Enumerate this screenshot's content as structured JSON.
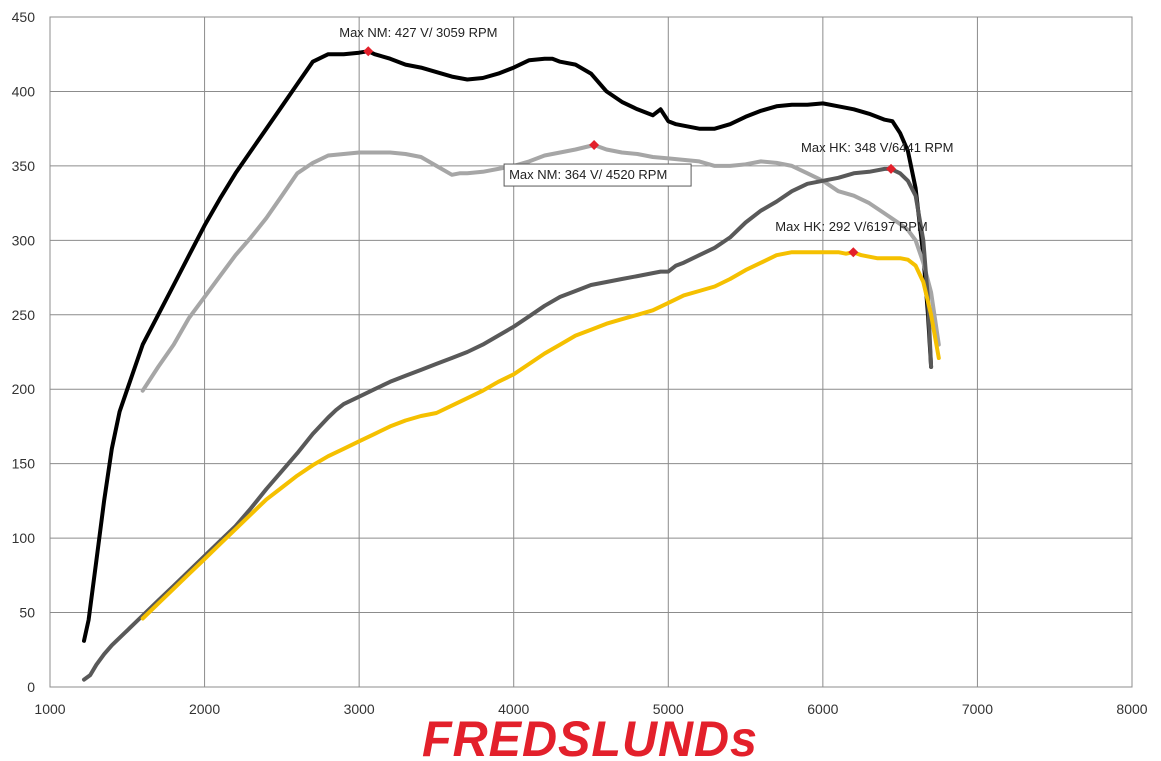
{
  "chart_data": {
    "type": "line",
    "xlim": [
      1000,
      8000
    ],
    "ylim": [
      0,
      450
    ],
    "xticks": [
      "1000",
      "2000",
      "3000",
      "4000",
      "5000",
      "6000",
      "7000",
      "8000"
    ],
    "yticks": [
      "0",
      "50",
      "100",
      "150",
      "200",
      "250",
      "300",
      "350",
      "400",
      "450"
    ],
    "grid": true,
    "series": [
      {
        "color": "#000000",
        "x": [
          1220,
          1250,
          1300,
          1350,
          1400,
          1450,
          1500,
          1550,
          1600,
          1700,
          1800,
          1900,
          2000,
          2100,
          2200,
          2300,
          2400,
          2500,
          2600,
          2700,
          2800,
          2850,
          2900,
          3000,
          3059,
          3100,
          3200,
          3300,
          3400,
          3500,
          3600,
          3700,
          3800,
          3900,
          4000,
          4100,
          4200,
          4250,
          4300,
          4400,
          4500,
          4600,
          4700,
          4800,
          4900,
          4950,
          5000,
          5050,
          5100,
          5200,
          5300,
          5400,
          5500,
          5600,
          5700,
          5800,
          5900,
          6000,
          6100,
          6200,
          6300,
          6400,
          6450,
          6500,
          6550,
          6600,
          6650,
          6680,
          6700
        ],
        "y": [
          31,
          45,
          85,
          125,
          160,
          185,
          200,
          215,
          230,
          250,
          270,
          290,
          310,
          328,
          345,
          360,
          375,
          390,
          405,
          420,
          425,
          425,
          425,
          426,
          427,
          425,
          422,
          418,
          416,
          413,
          410,
          408,
          409,
          412,
          416,
          421,
          422,
          422,
          420,
          418,
          412,
          400,
          393,
          388,
          384,
          388,
          380,
          378,
          377,
          375,
          375,
          378,
          383,
          387,
          390,
          391,
          391,
          392,
          390,
          388,
          385,
          381,
          380,
          372,
          360,
          335,
          290,
          250,
          215
        ]
      },
      {
        "color": "#a6a6a6",
        "x": [
          1600,
          1700,
          1800,
          1900,
          2000,
          2100,
          2200,
          2300,
          2400,
          2500,
          2600,
          2700,
          2800,
          2900,
          3000,
          3100,
          3200,
          3300,
          3400,
          3500,
          3600,
          3650,
          3700,
          3800,
          3900,
          4000,
          4100,
          4200,
          4300,
          4400,
          4520,
          4600,
          4700,
          4800,
          4900,
          5000,
          5100,
          5200,
          5300,
          5400,
          5500,
          5600,
          5700,
          5800,
          5900,
          6000,
          6100,
          6200,
          6300,
          6400,
          6500,
          6550,
          6600,
          6650,
          6700,
          6750
        ],
        "y": [
          199,
          215,
          230,
          248,
          262,
          276,
          290,
          302,
          315,
          330,
          345,
          352,
          357,
          358,
          359,
          359,
          359,
          358,
          356,
          350,
          344,
          345,
          345,
          346,
          348,
          350,
          353,
          357,
          359,
          361,
          364,
          361,
          359,
          358,
          356,
          355,
          354,
          353,
          350,
          350,
          351,
          353,
          352,
          350,
          345,
          340,
          333,
          330,
          325,
          318,
          311,
          307,
          300,
          285,
          265,
          230
        ]
      },
      {
        "color": "#595959",
        "x": [
          1220,
          1260,
          1300,
          1350,
          1400,
          1500,
          1600,
          1700,
          1800,
          1900,
          2000,
          2100,
          2200,
          2300,
          2400,
          2500,
          2600,
          2700,
          2800,
          2850,
          2900,
          3000,
          3100,
          3200,
          3300,
          3400,
          3500,
          3600,
          3700,
          3800,
          3900,
          4000,
          4100,
          4200,
          4300,
          4400,
          4500,
          4600,
          4700,
          4800,
          4900,
          4950,
          5000,
          5050,
          5100,
          5200,
          5300,
          5400,
          5500,
          5600,
          5700,
          5800,
          5900,
          6000,
          6100,
          6200,
          6300,
          6400,
          6441,
          6500,
          6550,
          6600,
          6650,
          6680,
          6700
        ],
        "y": [
          5,
          8,
          15,
          22,
          28,
          38,
          48,
          58,
          68,
          78,
          88,
          98,
          108,
          120,
          133,
          145,
          157,
          170,
          181,
          186,
          190,
          195,
          200,
          205,
          209,
          213,
          217,
          221,
          225,
          230,
          236,
          242,
          249,
          256,
          262,
          266,
          270,
          272,
          274,
          276,
          278,
          279,
          279,
          283,
          285,
          290,
          295,
          302,
          312,
          320,
          326,
          333,
          338,
          340,
          342,
          345,
          346,
          348,
          348,
          345,
          340,
          330,
          300,
          260,
          215
        ]
      },
      {
        "color": "#f5c000",
        "x": [
          1600,
          1700,
          1800,
          1900,
          2000,
          2100,
          2200,
          2300,
          2400,
          2500,
          2600,
          2700,
          2800,
          2900,
          3000,
          3100,
          3200,
          3300,
          3400,
          3500,
          3600,
          3700,
          3800,
          3900,
          4000,
          4100,
          4200,
          4300,
          4400,
          4500,
          4600,
          4700,
          4800,
          4900,
          5000,
          5100,
          5200,
          5300,
          5400,
          5500,
          5600,
          5700,
          5800,
          5900,
          6000,
          6100,
          6150,
          6197,
          6250,
          6300,
          6350,
          6400,
          6450,
          6500,
          6550,
          6600,
          6650,
          6700,
          6750
        ],
        "y": [
          46,
          56,
          66,
          76,
          86,
          96,
          106,
          116,
          126,
          134,
          142,
          149,
          155,
          160,
          165,
          170,
          175,
          179,
          182,
          184,
          189,
          194,
          199,
          205,
          210,
          217,
          224,
          230,
          236,
          240,
          244,
          247,
          250,
          253,
          258,
          263,
          266,
          269,
          274,
          280,
          285,
          290,
          292,
          292,
          292,
          292,
          291,
          292,
          290,
          289,
          288,
          288,
          288,
          288,
          287,
          283,
          272,
          250,
          221
        ]
      }
    ],
    "annotations": [
      {
        "text": "Max NM: 427 V/ 3059 RPM",
        "x": 3059,
        "y": 427
      },
      {
        "text": "Max NM: 364 V/ 4520 RPM",
        "x": 4520,
        "y": 364
      },
      {
        "text": "Max HK: 348 V/6441 RPM",
        "x": 6441,
        "y": 348
      },
      {
        "text": "Max HK: 292 V/6197 RPM",
        "x": 6197,
        "y": 292
      }
    ],
    "marker_color": "#e3202b"
  },
  "brand": {
    "logo_text": "FREDSLUNDs",
    "color": "#e3202b"
  }
}
